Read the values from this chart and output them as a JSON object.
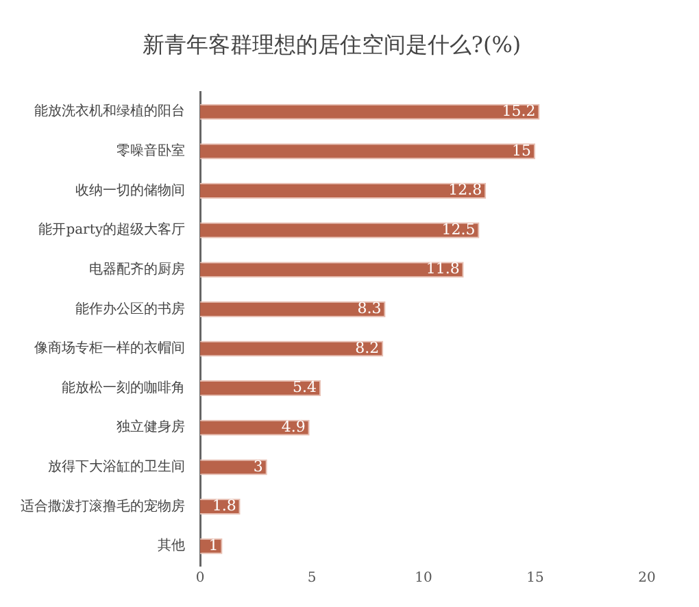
{
  "chart_data": {
    "type": "bar",
    "orientation": "horizontal",
    "title": "新青年客群理想的居住空间是什么?(%)",
    "categories": [
      "能放洗衣机和绿植的阳台",
      "零噪音卧室",
      "收纳一切的储物间",
      "能开party的超级大客厅",
      "电器配齐的厨房",
      "能作办公区的书房",
      "像商场专柜一样的衣帽间",
      "能放松一刻的咖啡角",
      "独立健身房",
      "放得下大浴缸的卫生间",
      "适合撒泼打滚撸毛的宠物房",
      "其他"
    ],
    "values": [
      15.2,
      15,
      12.8,
      12.5,
      11.8,
      8.3,
      8.2,
      5.4,
      4.9,
      3,
      1.8,
      1
    ],
    "color": "#b9634a",
    "xlim": [
      0,
      20
    ],
    "xticks": [
      0,
      5,
      10,
      15,
      20
    ],
    "grid": false,
    "legend": false,
    "data_labels": true
  }
}
